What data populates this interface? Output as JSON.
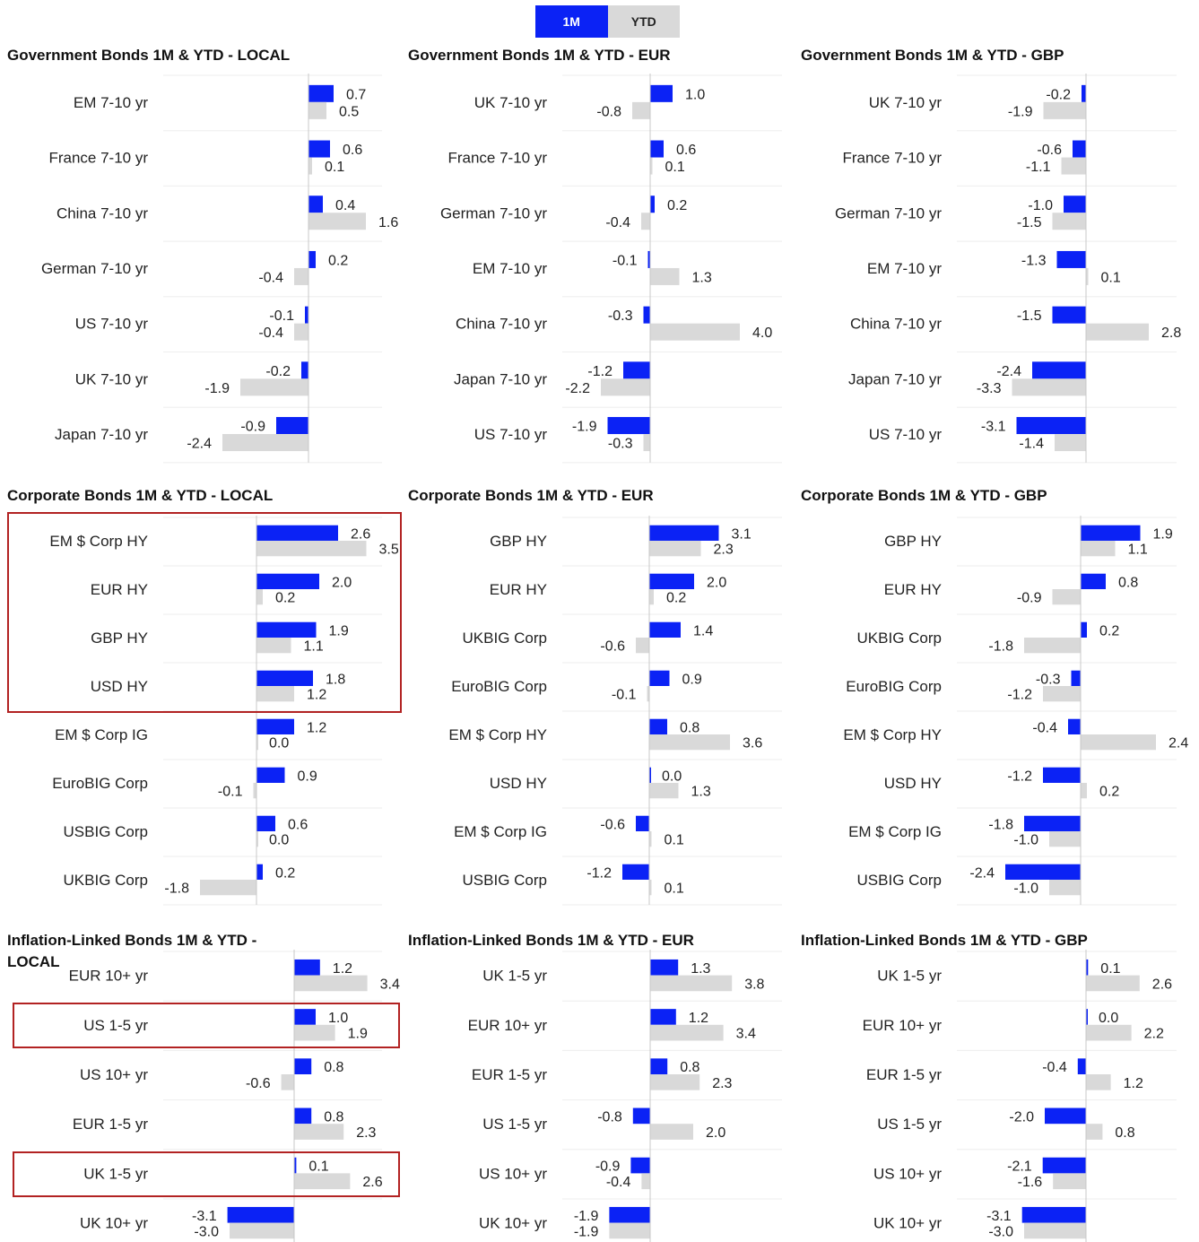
{
  "legend": {
    "one_month": "1M",
    "ytd": "YTD"
  },
  "colors": {
    "one_month": "#0b22f5",
    "ytd": "#d9d9d9",
    "highlight": "#b22222",
    "axis": "#c8c8c8"
  },
  "chart_data": [
    {
      "type": "bar",
      "orientation": "horizontal",
      "title": "Government Bonds 1M & YTD - LOCAL",
      "categories": [
        "EM 7-10 yr",
        "France 7-10 yr",
        "China 7-10 yr",
        "German 7-10 yr",
        "US 7-10 yr",
        "UK 7-10 yr",
        "Japan 7-10 yr"
      ],
      "series": [
        {
          "name": "1M",
          "values": [
            0.7,
            0.6,
            0.4,
            0.2,
            -0.1,
            -0.2,
            -0.9
          ]
        },
        {
          "name": "YTD",
          "values": [
            0.5,
            0.1,
            1.6,
            -0.4,
            -0.4,
            -1.9,
            -2.4
          ]
        }
      ],
      "highlighted": []
    },
    {
      "type": "bar",
      "orientation": "horizontal",
      "title": "Government Bonds 1M & YTD - EUR",
      "categories": [
        "UK 7-10 yr",
        "France 7-10 yr",
        "German 7-10 yr",
        "EM 7-10 yr",
        "China 7-10 yr",
        "Japan 7-10 yr",
        "US 7-10 yr"
      ],
      "series": [
        {
          "name": "1M",
          "values": [
            1.0,
            0.6,
            0.2,
            -0.1,
            -0.3,
            -1.2,
            -1.9
          ]
        },
        {
          "name": "YTD",
          "values": [
            -0.8,
            0.1,
            -0.4,
            1.3,
            4.0,
            -2.2,
            -0.3
          ]
        }
      ],
      "highlighted": []
    },
    {
      "type": "bar",
      "orientation": "horizontal",
      "title": "Government Bonds 1M & YTD - GBP",
      "categories": [
        "UK 7-10 yr",
        "France 7-10 yr",
        "German 7-10 yr",
        "EM 7-10 yr",
        "China 7-10 yr",
        "Japan 7-10 yr",
        "US 7-10 yr"
      ],
      "series": [
        {
          "name": "1M",
          "values": [
            -0.2,
            -0.6,
            -1.0,
            -1.3,
            -1.5,
            -2.4,
            -3.1
          ]
        },
        {
          "name": "YTD",
          "values": [
            -1.9,
            -1.1,
            -1.5,
            0.1,
            2.8,
            -3.3,
            -1.4
          ]
        }
      ],
      "highlighted": []
    },
    {
      "type": "bar",
      "orientation": "horizontal",
      "title": "Corporate Bonds 1M & YTD - LOCAL",
      "categories": [
        "EM $ Corp HY",
        "EUR HY",
        "GBP HY",
        "USD HY",
        "EM $ Corp IG",
        "EuroBIG Corp",
        "USBIG Corp",
        "UKBIG Corp"
      ],
      "series": [
        {
          "name": "1M",
          "values": [
            2.6,
            2.0,
            1.9,
            1.8,
            1.2,
            0.9,
            0.6,
            0.2
          ]
        },
        {
          "name": "YTD",
          "values": [
            3.5,
            0.2,
            1.1,
            1.2,
            0.0,
            -0.1,
            0.0,
            -1.8
          ]
        }
      ],
      "highlighted": [
        [
          0,
          3
        ]
      ]
    },
    {
      "type": "bar",
      "orientation": "horizontal",
      "title": "Corporate Bonds 1M & YTD - EUR",
      "categories": [
        "GBP HY",
        "EUR HY",
        "UKBIG Corp",
        "EuroBIG Corp",
        "EM $ Corp HY",
        "USD HY",
        "EM $ Corp IG",
        "USBIG Corp"
      ],
      "series": [
        {
          "name": "1M",
          "values": [
            3.1,
            2.0,
            1.4,
            0.9,
            0.8,
            0.0,
            -0.6,
            -1.2
          ]
        },
        {
          "name": "YTD",
          "values": [
            2.3,
            0.2,
            -0.6,
            -0.1,
            3.6,
            1.3,
            0.1,
            0.1
          ]
        }
      ],
      "highlighted": []
    },
    {
      "type": "bar",
      "orientation": "horizontal",
      "title": "Corporate Bonds 1M & YTD - GBP",
      "categories": [
        "GBP HY",
        "EUR HY",
        "UKBIG Corp",
        "EuroBIG Corp",
        "EM $ Corp HY",
        "USD HY",
        "EM $ Corp IG",
        "USBIG Corp"
      ],
      "series": [
        {
          "name": "1M",
          "values": [
            1.9,
            0.8,
            0.2,
            -0.3,
            -0.4,
            -1.2,
            -1.8,
            -2.4
          ]
        },
        {
          "name": "YTD",
          "values": [
            1.1,
            -0.9,
            -1.8,
            -1.2,
            2.4,
            0.2,
            -1.0,
            -1.0
          ]
        }
      ],
      "highlighted": []
    },
    {
      "type": "bar",
      "orientation": "horizontal",
      "title": "Inflation-Linked Bonds 1M & YTD - LOCAL",
      "categories": [
        "EUR 10+ yr",
        "US 1-5 yr",
        "US 10+ yr",
        "EUR 1-5 yr",
        "UK 1-5 yr",
        "UK 10+ yr"
      ],
      "series": [
        {
          "name": "1M",
          "values": [
            1.2,
            1.0,
            0.8,
            0.8,
            0.1,
            -3.1
          ]
        },
        {
          "name": "YTD",
          "values": [
            3.4,
            1.9,
            -0.6,
            2.3,
            2.6,
            -3.0
          ]
        }
      ],
      "highlighted": [
        [
          1,
          1
        ],
        [
          4,
          4
        ]
      ]
    },
    {
      "type": "bar",
      "orientation": "horizontal",
      "title": "Inflation-Linked Bonds 1M & YTD - EUR",
      "categories": [
        "UK 1-5 yr",
        "EUR 10+ yr",
        "EUR 1-5 yr",
        "US 1-5 yr",
        "US 10+ yr",
        "UK 10+ yr"
      ],
      "series": [
        {
          "name": "1M",
          "values": [
            1.3,
            1.2,
            0.8,
            -0.8,
            -0.9,
            -1.9
          ]
        },
        {
          "name": "YTD",
          "values": [
            3.8,
            3.4,
            2.3,
            2.0,
            -0.4,
            -1.9
          ]
        }
      ],
      "highlighted": []
    },
    {
      "type": "bar",
      "orientation": "horizontal",
      "title": "Inflation-Linked Bonds 1M & YTD - GBP",
      "categories": [
        "UK 1-5 yr",
        "EUR 10+ yr",
        "EUR 1-5 yr",
        "US 1-5 yr",
        "US 10+ yr",
        "UK 10+ yr"
      ],
      "series": [
        {
          "name": "1M",
          "values": [
            0.1,
            0.0,
            -0.4,
            -2.0,
            -2.1,
            -3.1
          ]
        },
        {
          "name": "YTD",
          "values": [
            2.6,
            2.2,
            1.2,
            0.8,
            -1.6,
            -3.0
          ]
        }
      ],
      "highlighted": []
    }
  ]
}
